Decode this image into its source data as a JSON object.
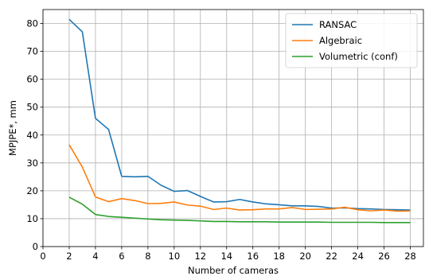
{
  "chart_data": {
    "type": "line",
    "title": "",
    "xlabel": "Number of cameras",
    "ylabel": "MPJPE*, mm",
    "xlim": [
      0,
      29
    ],
    "ylim": [
      0,
      85
    ],
    "xticks": [
      0,
      2,
      4,
      6,
      8,
      10,
      12,
      14,
      16,
      18,
      20,
      22,
      24,
      26,
      28
    ],
    "yticks": [
      0,
      10,
      20,
      30,
      40,
      50,
      60,
      70,
      80
    ],
    "grid": true,
    "legend_position": "top-right",
    "x": [
      2,
      3,
      4,
      5,
      6,
      7,
      8,
      9,
      10,
      11,
      12,
      13,
      14,
      15,
      16,
      17,
      18,
      19,
      20,
      21,
      22,
      23,
      24,
      25,
      26,
      27,
      28
    ],
    "series": [
      {
        "name": "RANSAC",
        "color": "#1f77b4",
        "values": [
          81.5,
          77.0,
          46.0,
          42.0,
          25.2,
          25.0,
          25.2,
          22.0,
          19.8,
          20.1,
          18.0,
          16.0,
          16.1,
          16.9,
          16.0,
          15.3,
          15.0,
          14.6,
          14.6,
          14.4,
          13.8,
          13.9,
          13.6,
          13.5,
          13.3,
          13.2,
          13.1
        ]
      },
      {
        "name": "Algebraic",
        "color": "#ff7f0e",
        "values": [
          36.5,
          28.5,
          17.8,
          16.1,
          17.2,
          16.5,
          15.4,
          15.5,
          16.0,
          14.9,
          14.5,
          13.3,
          13.8,
          13.1,
          13.2,
          13.5,
          13.5,
          14.0,
          13.3,
          13.4,
          13.5,
          14.1,
          13.2,
          12.8,
          13.1,
          12.7,
          12.8
        ]
      },
      {
        "name": "Volumetric (conf)",
        "color": "#2ca02c",
        "values": [
          17.7,
          15.2,
          11.5,
          10.8,
          10.5,
          10.2,
          9.9,
          9.6,
          9.5,
          9.4,
          9.2,
          9.0,
          9.0,
          8.9,
          8.9,
          8.9,
          8.8,
          8.8,
          8.8,
          8.8,
          8.7,
          8.7,
          8.7,
          8.7,
          8.6,
          8.6,
          8.6
        ]
      }
    ]
  }
}
